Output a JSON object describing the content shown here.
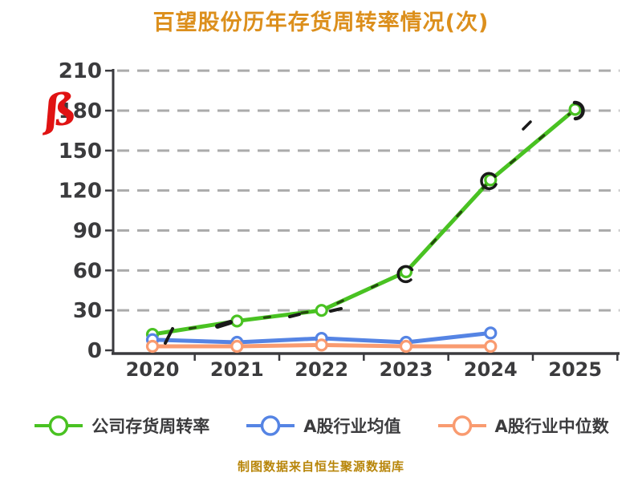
{
  "title": "百望股份历年存货周转率情况(次)",
  "footer": "制图数据来自恒生聚源数据库",
  "annotations": {
    "red_mark": "ß"
  },
  "colors": {
    "title": "#DC8F1C",
    "footer": "#B8860B",
    "axis_label": "#3B3B3D",
    "grid": "#ABABAB",
    "axis": "#3A3A3E",
    "annotation_red": "#E01313",
    "ink": "#1A1A1A",
    "marker_fill": "#FFFFFF"
  },
  "chart_data": {
    "type": "line",
    "title": "百望股份历年存货周转率情况(次)",
    "categories": [
      "2020",
      "2021",
      "2022",
      "2023",
      "2024",
      "2025"
    ],
    "series": [
      {
        "name": "公司存货周转率",
        "color": "#49C222",
        "values": [
          12,
          22,
          30,
          59,
          128,
          181
        ]
      },
      {
        "name": "A股行业均值",
        "color": "#5584E4",
        "values": [
          8,
          6,
          9,
          6,
          13,
          null
        ]
      },
      {
        "name": "A股行业中位数",
        "color": "#F99B70",
        "values": [
          3,
          3,
          4,
          3,
          3,
          null
        ]
      }
    ],
    "yticks": [
      0,
      30,
      60,
      90,
      120,
      150,
      180,
      210
    ],
    "ylim": [
      0,
      210
    ],
    "xlabel": "",
    "ylabel": "",
    "grid": "horizontal-dashed",
    "legend_position": "bottom",
    "marker": "open-circle"
  }
}
